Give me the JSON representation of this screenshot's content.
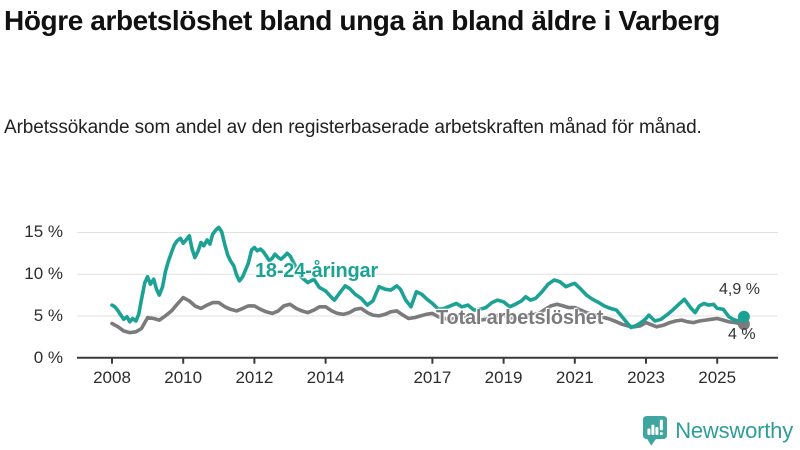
{
  "colors": {
    "accent_teal": "#1ca295",
    "line_gray": "#7b7b7d",
    "gridline": "#e1e1e1",
    "axis": "#3a3a3a",
    "tick_text": "#2d2d2d",
    "title_text": "#111111",
    "brand_teal": "#2d9e99",
    "logo_icon_teal": "#3fa5a0"
  },
  "footer": {
    "brand": "Newsworthy"
  },
  "chart_data": {
    "type": "line",
    "title": "Högre arbetslöshet bland unga än bland äldre i Varberg",
    "subtitle": "Arbetssökande som andel av den registerbaserade arbetskraften månad för månad.",
    "xlabel": "",
    "ylabel": "",
    "grid": "horizontal",
    "legend_position": "inline-labels",
    "xlim": [
      2007.0,
      2026.7
    ],
    "ylim": [
      0,
      16.5
    ],
    "x_ticks": [
      2008,
      2010,
      2012,
      2014,
      2017,
      2019,
      2021,
      2023,
      2025
    ],
    "y_ticks": [
      {
        "value": 0,
        "label": "0 %"
      },
      {
        "value": 5,
        "label": "5 %"
      },
      {
        "value": 10,
        "label": "10 %"
      },
      {
        "value": 15,
        "label": "15 %"
      }
    ],
    "series": [
      {
        "name": "18-24-åringar",
        "color": "#1ca295",
        "end_label": "4,9 %",
        "end_value": 4.9,
        "points": [
          [
            2008.0,
            6.3
          ],
          [
            2008.08,
            6.1
          ],
          [
            2008.17,
            5.6
          ],
          [
            2008.25,
            5.1
          ],
          [
            2008.33,
            4.6
          ],
          [
            2008.42,
            4.9
          ],
          [
            2008.5,
            4.3
          ],
          [
            2008.58,
            4.7
          ],
          [
            2008.67,
            4.4
          ],
          [
            2008.75,
            5.2
          ],
          [
            2008.83,
            7.0
          ],
          [
            2008.92,
            9.0
          ],
          [
            2009.0,
            9.7
          ],
          [
            2009.08,
            8.8
          ],
          [
            2009.17,
            9.4
          ],
          [
            2009.25,
            8.2
          ],
          [
            2009.33,
            7.5
          ],
          [
            2009.42,
            8.5
          ],
          [
            2009.5,
            10.3
          ],
          [
            2009.58,
            11.5
          ],
          [
            2009.67,
            12.6
          ],
          [
            2009.75,
            13.5
          ],
          [
            2009.83,
            14.0
          ],
          [
            2009.92,
            14.3
          ],
          [
            2010.0,
            13.7
          ],
          [
            2010.08,
            14.1
          ],
          [
            2010.17,
            14.6
          ],
          [
            2010.25,
            13.0
          ],
          [
            2010.33,
            12.0
          ],
          [
            2010.42,
            12.8
          ],
          [
            2010.5,
            13.8
          ],
          [
            2010.58,
            13.4
          ],
          [
            2010.67,
            14.1
          ],
          [
            2010.75,
            13.6
          ],
          [
            2010.83,
            14.8
          ],
          [
            2010.92,
            15.3
          ],
          [
            2011.0,
            15.6
          ],
          [
            2011.08,
            15.1
          ],
          [
            2011.17,
            13.5
          ],
          [
            2011.25,
            12.3
          ],
          [
            2011.33,
            11.6
          ],
          [
            2011.42,
            11.0
          ],
          [
            2011.5,
            9.9
          ],
          [
            2011.58,
            9.2
          ],
          [
            2011.67,
            9.7
          ],
          [
            2011.75,
            10.5
          ],
          [
            2011.83,
            11.3
          ],
          [
            2011.92,
            12.9
          ],
          [
            2012.0,
            13.2
          ],
          [
            2012.08,
            12.8
          ],
          [
            2012.17,
            13.0
          ],
          [
            2012.25,
            12.7
          ],
          [
            2012.33,
            12.2
          ],
          [
            2012.42,
            11.6
          ],
          [
            2012.5,
            11.9
          ],
          [
            2012.58,
            12.4
          ],
          [
            2012.67,
            12.0
          ],
          [
            2012.75,
            11.8
          ],
          [
            2012.83,
            12.1
          ],
          [
            2012.92,
            12.5
          ],
          [
            2013.0,
            12.2
          ],
          [
            2013.17,
            10.8
          ],
          [
            2013.33,
            9.6
          ],
          [
            2013.5,
            9.0
          ],
          [
            2013.67,
            9.4
          ],
          [
            2013.83,
            8.4
          ],
          [
            2014.0,
            8.0
          ],
          [
            2014.17,
            7.2
          ],
          [
            2014.25,
            6.9
          ],
          [
            2014.42,
            7.9
          ],
          [
            2014.55,
            8.6
          ],
          [
            2014.67,
            8.3
          ],
          [
            2014.83,
            7.6
          ],
          [
            2015.0,
            7.1
          ],
          [
            2015.17,
            6.3
          ],
          [
            2015.33,
            6.8
          ],
          [
            2015.5,
            8.5
          ],
          [
            2015.67,
            8.2
          ],
          [
            2015.83,
            8.1
          ],
          [
            2016.0,
            8.6
          ],
          [
            2016.1,
            8.2
          ],
          [
            2016.25,
            6.9
          ],
          [
            2016.4,
            6.1
          ],
          [
            2016.55,
            7.9
          ],
          [
            2016.7,
            7.6
          ],
          [
            2016.85,
            7.0
          ],
          [
            2017.0,
            6.5
          ],
          [
            2017.17,
            5.8
          ],
          [
            2017.33,
            5.9
          ],
          [
            2017.5,
            6.2
          ],
          [
            2017.67,
            6.5
          ],
          [
            2017.83,
            6.1
          ],
          [
            2018.0,
            6.3
          ],
          [
            2018.17,
            5.7
          ],
          [
            2018.33,
            5.8
          ],
          [
            2018.5,
            6.0
          ],
          [
            2018.67,
            6.6
          ],
          [
            2018.83,
            6.9
          ],
          [
            2019.0,
            6.7
          ],
          [
            2019.17,
            6.1
          ],
          [
            2019.33,
            6.4
          ],
          [
            2019.5,
            6.8
          ],
          [
            2019.62,
            7.3
          ],
          [
            2019.75,
            6.9
          ],
          [
            2019.9,
            7.1
          ],
          [
            2020.08,
            7.9
          ],
          [
            2020.25,
            8.8
          ],
          [
            2020.42,
            9.3
          ],
          [
            2020.58,
            9.1
          ],
          [
            2020.75,
            8.5
          ],
          [
            2020.92,
            8.8
          ],
          [
            2021.0,
            8.9
          ],
          [
            2021.17,
            8.2
          ],
          [
            2021.33,
            7.5
          ],
          [
            2021.5,
            7.0
          ],
          [
            2021.67,
            6.6
          ],
          [
            2021.83,
            6.2
          ],
          [
            2022.0,
            5.9
          ],
          [
            2022.17,
            5.7
          ],
          [
            2022.33,
            4.9
          ],
          [
            2022.5,
            4.0
          ],
          [
            2022.58,
            3.6
          ],
          [
            2022.75,
            3.9
          ],
          [
            2022.92,
            4.4
          ],
          [
            2023.0,
            4.7
          ],
          [
            2023.08,
            5.1
          ],
          [
            2023.25,
            4.4
          ],
          [
            2023.42,
            4.6
          ],
          [
            2023.58,
            5.1
          ],
          [
            2023.75,
            5.7
          ],
          [
            2023.92,
            6.4
          ],
          [
            2024.08,
            7.0
          ],
          [
            2024.25,
            6.0
          ],
          [
            2024.38,
            5.4
          ],
          [
            2024.5,
            6.2
          ],
          [
            2024.63,
            6.5
          ],
          [
            2024.75,
            6.3
          ],
          [
            2024.9,
            6.4
          ],
          [
            2025.0,
            5.9
          ],
          [
            2025.17,
            5.8
          ],
          [
            2025.33,
            4.9
          ],
          [
            2025.45,
            4.6
          ],
          [
            2025.58,
            4.4
          ],
          [
            2025.75,
            4.9
          ]
        ]
      },
      {
        "name": "Total arbetslöshet",
        "color": "#7b7b7d",
        "end_label": "4 %",
        "end_value": 4.0,
        "points": [
          [
            2008.0,
            4.1
          ],
          [
            2008.17,
            3.7
          ],
          [
            2008.33,
            3.2
          ],
          [
            2008.5,
            3.0
          ],
          [
            2008.67,
            3.1
          ],
          [
            2008.83,
            3.5
          ],
          [
            2009.0,
            4.8
          ],
          [
            2009.17,
            4.7
          ],
          [
            2009.33,
            4.5
          ],
          [
            2009.5,
            5.0
          ],
          [
            2009.67,
            5.6
          ],
          [
            2009.83,
            6.4
          ],
          [
            2010.0,
            7.2
          ],
          [
            2010.17,
            6.8
          ],
          [
            2010.33,
            6.2
          ],
          [
            2010.5,
            5.9
          ],
          [
            2010.67,
            6.3
          ],
          [
            2010.83,
            6.6
          ],
          [
            2011.0,
            6.6
          ],
          [
            2011.17,
            6.1
          ],
          [
            2011.33,
            5.8
          ],
          [
            2011.5,
            5.6
          ],
          [
            2011.67,
            5.9
          ],
          [
            2011.83,
            6.2
          ],
          [
            2012.0,
            6.2
          ],
          [
            2012.17,
            5.8
          ],
          [
            2012.33,
            5.5
          ],
          [
            2012.5,
            5.3
          ],
          [
            2012.67,
            5.6
          ],
          [
            2012.83,
            6.2
          ],
          [
            2013.0,
            6.4
          ],
          [
            2013.17,
            5.9
          ],
          [
            2013.33,
            5.6
          ],
          [
            2013.5,
            5.4
          ],
          [
            2013.67,
            5.7
          ],
          [
            2013.83,
            6.1
          ],
          [
            2014.0,
            6.1
          ],
          [
            2014.17,
            5.6
          ],
          [
            2014.33,
            5.3
          ],
          [
            2014.5,
            5.2
          ],
          [
            2014.67,
            5.4
          ],
          [
            2014.83,
            5.8
          ],
          [
            2015.0,
            5.9
          ],
          [
            2015.17,
            5.4
          ],
          [
            2015.33,
            5.1
          ],
          [
            2015.5,
            5.0
          ],
          [
            2015.67,
            5.2
          ],
          [
            2015.83,
            5.5
          ],
          [
            2016.0,
            5.6
          ],
          [
            2016.17,
            5.1
          ],
          [
            2016.33,
            4.7
          ],
          [
            2016.5,
            4.8
          ],
          [
            2016.67,
            5.0
          ],
          [
            2016.83,
            5.2
          ],
          [
            2017.0,
            5.3
          ],
          [
            2017.17,
            4.9
          ],
          [
            2017.33,
            4.7
          ],
          [
            2017.5,
            4.6
          ],
          [
            2017.67,
            4.8
          ],
          [
            2017.83,
            5.0
          ],
          [
            2018.0,
            5.0
          ],
          [
            2018.17,
            4.7
          ],
          [
            2018.33,
            4.5
          ],
          [
            2018.5,
            4.6
          ],
          [
            2018.67,
            4.8
          ],
          [
            2018.83,
            5.0
          ],
          [
            2019.0,
            5.1
          ],
          [
            2019.17,
            4.8
          ],
          [
            2019.33,
            4.7
          ],
          [
            2019.5,
            4.8
          ],
          [
            2019.67,
            5.0
          ],
          [
            2019.83,
            5.2
          ],
          [
            2020.0,
            5.3
          ],
          [
            2020.17,
            5.8
          ],
          [
            2020.33,
            6.2
          ],
          [
            2020.5,
            6.4
          ],
          [
            2020.67,
            6.2
          ],
          [
            2020.83,
            6.0
          ],
          [
            2021.0,
            6.0
          ],
          [
            2021.17,
            5.7
          ],
          [
            2021.33,
            5.4
          ],
          [
            2021.5,
            5.2
          ],
          [
            2021.67,
            5.0
          ],
          [
            2021.83,
            4.8
          ],
          [
            2022.0,
            4.6
          ],
          [
            2022.17,
            4.3
          ],
          [
            2022.33,
            4.0
          ],
          [
            2022.5,
            3.8
          ],
          [
            2022.67,
            3.7
          ],
          [
            2022.83,
            3.8
          ],
          [
            2023.0,
            4.2
          ],
          [
            2023.17,
            3.9
          ],
          [
            2023.3,
            3.7
          ],
          [
            2023.5,
            3.9
          ],
          [
            2023.67,
            4.2
          ],
          [
            2023.83,
            4.4
          ],
          [
            2024.0,
            4.5
          ],
          [
            2024.17,
            4.3
          ],
          [
            2024.33,
            4.2
          ],
          [
            2024.5,
            4.4
          ],
          [
            2024.67,
            4.5
          ],
          [
            2024.83,
            4.6
          ],
          [
            2025.0,
            4.7
          ],
          [
            2025.17,
            4.5
          ],
          [
            2025.33,
            4.3
          ],
          [
            2025.5,
            4.2
          ],
          [
            2025.75,
            4.0
          ]
        ]
      }
    ]
  }
}
